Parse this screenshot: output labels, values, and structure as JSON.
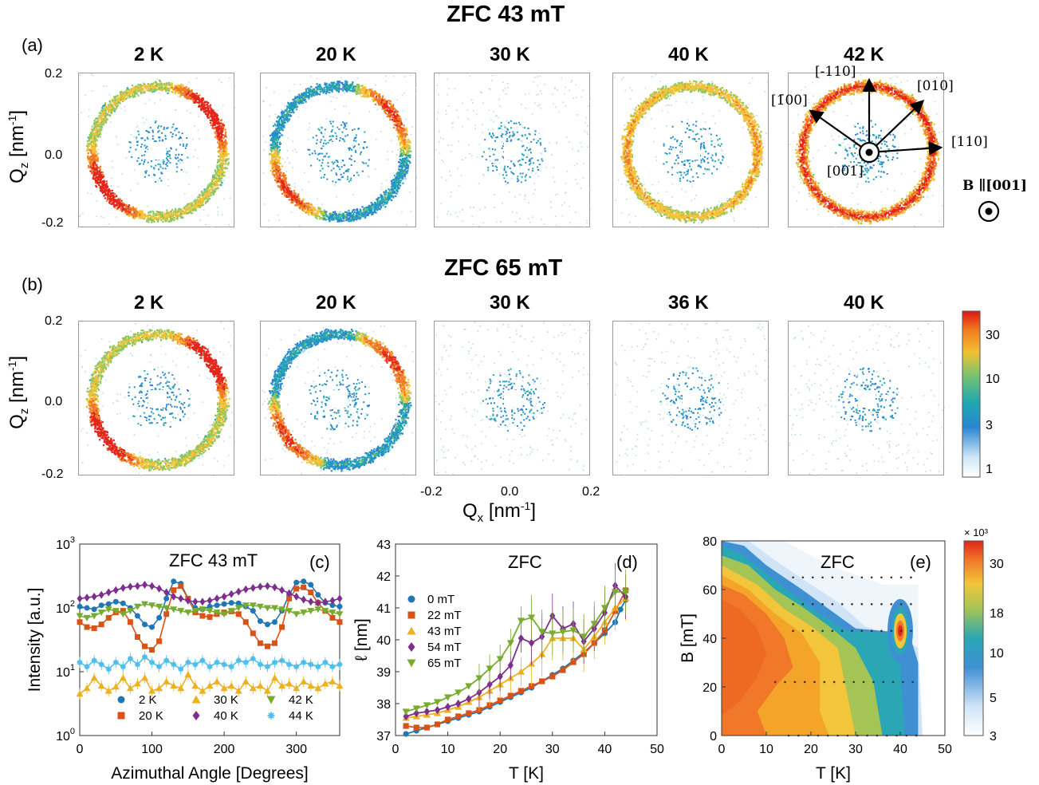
{
  "figure": {
    "row_a": {
      "label": "(a)",
      "title": "ZFC 43 mT",
      "temps": [
        "2 K",
        "20 K",
        "30 K",
        "40 K",
        "42 K"
      ]
    },
    "row_b": {
      "label": "(b)",
      "title": "ZFC 65 mT",
      "temps": [
        "2 K",
        "20 K",
        "30 K",
        "36 K",
        "40 K"
      ]
    },
    "qz_label": "Q",
    "qz_sub": "z",
    "qz_unit": " [nm",
    "qz_sup": "-1",
    "qz_close": "]",
    "qx_label": "Q",
    "qx_sub": "x",
    "qx_unit": " [nm",
    "qx_sup": "-1",
    "qx_close": "]",
    "qz_ticks": [
      "0.2",
      "0.0",
      "-0.2"
    ],
    "qx_ticks": [
      "-0.2",
      "0.0",
      "0.2"
    ],
    "colorbar_ticks": [
      "30",
      "10",
      "3",
      "1"
    ],
    "directions": [
      "[-110]",
      "[010]",
      "[110]",
      "[001]"
    ],
    "dir_bar100": "[1̄00]",
    "field_annot": "B ∥[001]",
    "colors": {
      "low": "#e8f4fc",
      "blue": "#1f78c8",
      "teal": "#2fb0a0",
      "yellow": "#f0c030",
      "orange": "#f07020",
      "red": "#e01010"
    }
  },
  "chart_data": [
    {
      "type": "line",
      "panel": "(c)",
      "title": "ZFC 43 mT",
      "xlabel": "Azimuthal Angle [Degrees]",
      "ylabel": "Intensity [a.u.]",
      "xlim": [
        0,
        360
      ],
      "ylim": [
        1,
        1000
      ],
      "yscale": "log",
      "xticks": [
        "0",
        "100",
        "200",
        "300"
      ],
      "yticks": [
        "10^0",
        "10^1",
        "10^2",
        "10^3"
      ],
      "legend": "bottom",
      "series": [
        {
          "name": "2 K",
          "color": "#1f77b4",
          "marker": "circle",
          "x": [
            0,
            10,
            20,
            30,
            40,
            50,
            60,
            70,
            80,
            90,
            100,
            110,
            120,
            130,
            140,
            150,
            160,
            170,
            180,
            190,
            200,
            210,
            220,
            230,
            240,
            250,
            260,
            270,
            280,
            290,
            300,
            310,
            320,
            330,
            340,
            350,
            360
          ],
          "y": [
            105,
            100,
            95,
            110,
            115,
            125,
            118,
            100,
            75,
            55,
            50,
            70,
            140,
            260,
            240,
            140,
            100,
            95,
            105,
            110,
            115,
            120,
            118,
            105,
            90,
            62,
            55,
            60,
            90,
            160,
            250,
            260,
            230,
            160,
            120,
            110,
            105
          ]
        },
        {
          "name": "20 K",
          "color": "#d95319",
          "marker": "square",
          "x": [
            0,
            10,
            20,
            30,
            40,
            50,
            60,
            70,
            80,
            90,
            100,
            110,
            120,
            130,
            140,
            150,
            160,
            170,
            180,
            190,
            200,
            210,
            220,
            230,
            240,
            250,
            260,
            270,
            280,
            290,
            300,
            310,
            320,
            330,
            340,
            350,
            360
          ],
          "y": [
            60,
            50,
            48,
            55,
            70,
            85,
            90,
            60,
            35,
            25,
            22,
            30,
            80,
            190,
            220,
            140,
            85,
            75,
            72,
            80,
            85,
            88,
            80,
            60,
            40,
            28,
            25,
            28,
            50,
            140,
            200,
            210,
            175,
            120,
            90,
            70,
            60
          ]
        },
        {
          "name": "30 K",
          "color": "#edb120",
          "marker": "triangle-up",
          "x": [
            0,
            10,
            20,
            30,
            40,
            50,
            60,
            70,
            80,
            90,
            100,
            110,
            120,
            130,
            140,
            150,
            160,
            170,
            180,
            190,
            200,
            210,
            220,
            230,
            240,
            250,
            260,
            270,
            280,
            290,
            300,
            310,
            320,
            330,
            340,
            350,
            360
          ],
          "y": [
            4.5,
            5.5,
            8,
            6,
            5,
            5.8,
            8,
            5.5,
            6.5,
            8,
            5,
            5.5,
            7,
            6,
            5.5,
            9,
            6,
            5,
            6,
            7,
            5.5,
            6,
            5,
            7,
            5.5,
            6,
            5,
            8,
            6,
            6.5,
            5.5,
            7,
            6,
            5.5,
            6.5,
            7,
            6
          ]
        },
        {
          "name": "40 K",
          "color": "#7e2f8e",
          "marker": "diamond",
          "x": [
            0,
            10,
            20,
            30,
            40,
            50,
            60,
            70,
            80,
            90,
            100,
            110,
            120,
            130,
            140,
            150,
            160,
            170,
            180,
            190,
            200,
            210,
            220,
            230,
            240,
            250,
            260,
            270,
            280,
            290,
            300,
            310,
            320,
            330,
            340,
            350,
            360
          ],
          "y": [
            140,
            145,
            150,
            160,
            175,
            190,
            205,
            215,
            220,
            230,
            220,
            200,
            175,
            150,
            140,
            130,
            125,
            125,
            130,
            140,
            150,
            165,
            180,
            195,
            205,
            215,
            220,
            210,
            190,
            170,
            150,
            135,
            125,
            120,
            125,
            130,
            140
          ]
        },
        {
          "name": "42 K",
          "color": "#77ac30",
          "marker": "triangle-down",
          "x": [
            0,
            10,
            20,
            30,
            40,
            50,
            60,
            70,
            80,
            90,
            100,
            110,
            120,
            130,
            140,
            150,
            160,
            170,
            180,
            190,
            200,
            210,
            220,
            230,
            240,
            250,
            260,
            270,
            280,
            290,
            300,
            310,
            320,
            330,
            340,
            350,
            360
          ],
          "y": [
            75,
            70,
            75,
            85,
            95,
            90,
            80,
            90,
            105,
            115,
            110,
            105,
            100,
            95,
            90,
            85,
            90,
            95,
            90,
            85,
            80,
            90,
            100,
            110,
            110,
            105,
            100,
            100,
            95,
            90,
            80,
            85,
            90,
            95,
            90,
            85,
            80
          ]
        },
        {
          "name": "44 K",
          "color": "#4dbeee",
          "marker": "star",
          "x": [
            0,
            10,
            20,
            30,
            40,
            50,
            60,
            70,
            80,
            90,
            100,
            110,
            120,
            130,
            140,
            150,
            160,
            170,
            180,
            190,
            200,
            210,
            220,
            230,
            240,
            250,
            260,
            270,
            280,
            290,
            300,
            310,
            320,
            330,
            340,
            350,
            360
          ],
          "y": [
            14,
            12,
            15,
            13,
            11,
            14,
            12,
            16,
            13,
            17,
            14,
            12,
            15,
            13,
            11,
            14,
            13,
            15,
            12,
            14,
            13,
            12,
            15,
            14,
            16,
            13,
            12,
            14,
            15,
            13,
            12,
            14,
            13,
            12,
            14,
            12,
            13
          ]
        }
      ]
    },
    {
      "type": "line",
      "panel": "(d)",
      "title": "ZFC",
      "xlabel": "T [K]",
      "ylabel": "ℓ [nm]",
      "xlim": [
        0,
        50
      ],
      "ylim": [
        37,
        43
      ],
      "xticks": [
        "0",
        "10",
        "20",
        "30",
        "40",
        "50"
      ],
      "yticks": [
        "37",
        "38",
        "39",
        "40",
        "41",
        "42",
        "43"
      ],
      "legend": "left",
      "series": [
        {
          "name": "0 mT",
          "color": "#1f77b4",
          "marker": "circle",
          "x": [
            2,
            4,
            6,
            8,
            10,
            12,
            14,
            16,
            18,
            20,
            22,
            24,
            26,
            28,
            30,
            32,
            34,
            36,
            38,
            40,
            42,
            43,
            44
          ],
          "y": [
            37.05,
            37.15,
            37.25,
            37.35,
            37.45,
            37.55,
            37.65,
            37.75,
            37.9,
            38.05,
            38.2,
            38.35,
            38.5,
            38.7,
            38.9,
            39.1,
            39.35,
            39.6,
            39.9,
            40.2,
            40.55,
            40.95,
            41.25
          ]
        },
        {
          "name": "22 mT",
          "color": "#d95319",
          "marker": "square",
          "x": [
            2,
            4,
            6,
            8,
            10,
            12,
            14,
            16,
            18,
            20,
            22,
            24,
            26,
            28,
            30,
            32,
            34,
            36,
            38,
            40,
            42,
            44
          ],
          "y": [
            37.3,
            37.25,
            37.25,
            37.35,
            37.5,
            37.6,
            37.7,
            37.8,
            37.95,
            38.1,
            38.25,
            38.4,
            38.55,
            38.7,
            38.85,
            39.05,
            39.3,
            39.55,
            39.9,
            40.3,
            40.9,
            41.55
          ]
        },
        {
          "name": "43 mT",
          "color": "#edb120",
          "marker": "triangle-up",
          "x": [
            2,
            4,
            6,
            8,
            10,
            12,
            14,
            16,
            18,
            20,
            22,
            24,
            26,
            28,
            30,
            32,
            34,
            36,
            38,
            40,
            42,
            44
          ],
          "y": [
            37.55,
            37.6,
            37.65,
            37.7,
            37.8,
            37.9,
            38.05,
            38.2,
            38.4,
            38.6,
            38.8,
            39.0,
            39.25,
            39.55,
            40.05,
            40.05,
            40.05,
            39.7,
            40.1,
            40.55,
            41.0,
            41.3
          ]
        },
        {
          "name": "54 mT",
          "color": "#7e2f8e",
          "marker": "diamond",
          "x": [
            2,
            4,
            6,
            8,
            10,
            12,
            14,
            16,
            18,
            20,
            22,
            24,
            26,
            28,
            30,
            32,
            34,
            36,
            38,
            40,
            42,
            44
          ],
          "y": [
            37.6,
            37.7,
            37.75,
            37.8,
            37.9,
            38.0,
            38.15,
            38.35,
            38.6,
            38.85,
            39.2,
            40.05,
            39.9,
            40.1,
            40.75,
            40.35,
            40.5,
            39.95,
            40.35,
            40.85,
            41.7,
            41.35
          ]
        },
        {
          "name": "65 mT",
          "color": "#77ac30",
          "marker": "triangle-down",
          "x": [
            2,
            4,
            6,
            8,
            10,
            12,
            14,
            16,
            18,
            20,
            22,
            24,
            26,
            28,
            30,
            32,
            34,
            36,
            38,
            40,
            42,
            44
          ],
          "y": [
            37.75,
            37.85,
            37.95,
            38.05,
            38.2,
            38.35,
            38.55,
            38.8,
            39.1,
            39.4,
            39.9,
            40.6,
            40.7,
            40.25,
            40.2,
            40.25,
            40.3,
            40.1,
            40.5,
            41.0,
            41.5,
            41.5
          ]
        }
      ]
    },
    {
      "type": "heatmap",
      "panel": "(e)",
      "title": "ZFC",
      "xlabel": "T [K]",
      "ylabel": "B [mT]",
      "xlim": [
        0,
        50
      ],
      "ylim": [
        0,
        80
      ],
      "xticks": [
        "0",
        "10",
        "20",
        "30",
        "40",
        "50"
      ],
      "yticks": [
        "0",
        "20",
        "40",
        "60",
        "80"
      ],
      "colorbar_ticks": [
        "30",
        "18",
        "10",
        "5",
        "3"
      ],
      "colorbar_exponent": "× 10³",
      "measured_fields_mT": [
        0,
        22,
        43,
        54,
        65
      ]
    }
  ]
}
